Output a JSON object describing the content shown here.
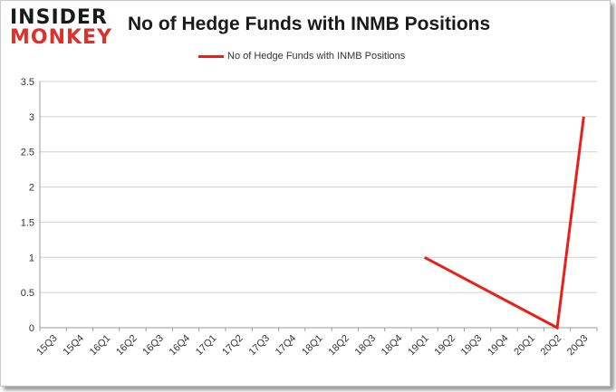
{
  "logo": {
    "line1": "INSIDER",
    "line2": "MONKEY"
  },
  "colors": {
    "series": "#e8201c",
    "grid": "#d0d0d0",
    "axis": "#9a9a9a"
  },
  "chart_data": {
    "type": "line",
    "title": "No of Hedge Funds with INMB Positions",
    "xlabel": "",
    "ylabel": "",
    "legend_position": "top-center",
    "grid": true,
    "ylim": [
      0,
      3.5
    ],
    "yticks": [
      "0",
      "0.5",
      "1",
      "1.5",
      "2",
      "2.5",
      "3",
      "3.5"
    ],
    "categories": [
      "15Q3",
      "15Q4",
      "16Q1",
      "16Q2",
      "16Q3",
      "16Q4",
      "17Q1",
      "17Q2",
      "17Q3",
      "17Q4",
      "18Q1",
      "18Q2",
      "18Q3",
      "18Q4",
      "19Q1",
      "19Q2",
      "19Q3",
      "19Q4",
      "20Q1",
      "20Q2",
      "20Q3"
    ],
    "series": [
      {
        "name": "No of Hedge Funds with INMB  Positions",
        "values": [
          null,
          null,
          null,
          null,
          null,
          null,
          null,
          null,
          null,
          null,
          null,
          null,
          null,
          null,
          1,
          null,
          null,
          null,
          null,
          0,
          3
        ]
      }
    ]
  }
}
